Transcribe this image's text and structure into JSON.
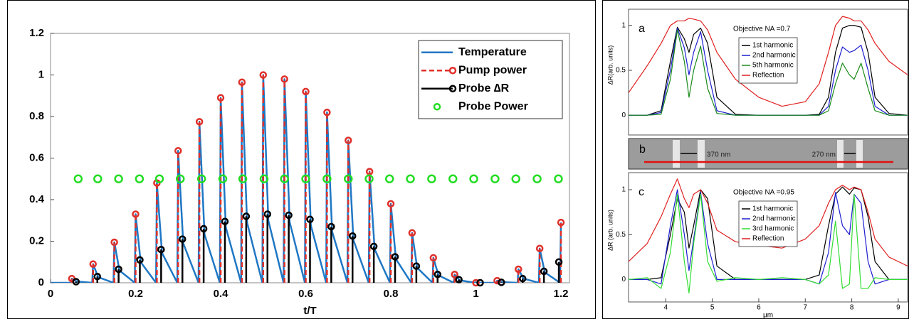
{
  "chart_data": [
    {
      "type": "line",
      "xlabel": "t/T",
      "xlim": [
        0,
        1.22
      ],
      "ylim": [
        0,
        1.2
      ],
      "xticks": [
        0,
        0.2,
        0.4,
        0.6,
        0.8,
        1,
        1.2
      ],
      "yticks": [
        0,
        0.2,
        0.4,
        0.6,
        0.8,
        1,
        1.2
      ],
      "legend": "upper right",
      "series": [
        {
          "name": "Temperature",
          "color": "#1f77c4",
          "style": "line",
          "x": [
            0,
            0.048,
            0.05,
            0.062,
            0.098,
            0.1,
            0.112,
            0.148,
            0.15,
            0.162,
            0.198,
            0.2,
            0.212,
            0.248,
            0.25,
            0.262,
            0.298,
            0.3,
            0.312,
            0.348,
            0.35,
            0.362,
            0.398,
            0.4,
            0.412,
            0.448,
            0.45,
            0.462,
            0.498,
            0.5,
            0.512,
            0.548,
            0.55,
            0.562,
            0.598,
            0.6,
            0.612,
            0.648,
            0.65,
            0.662,
            0.698,
            0.7,
            0.712,
            0.748,
            0.75,
            0.762,
            0.798,
            0.8,
            0.812,
            0.848,
            0.85,
            0.862,
            0.898,
            0.9,
            0.912,
            0.948,
            0.95,
            0.962,
            0.998,
            1.0,
            1.012,
            1.048,
            1.05,
            1.062,
            1.098,
            1.1,
            1.112,
            1.148,
            1.15,
            1.162,
            1.198,
            1.2
          ],
          "values": [
            0,
            0,
            0.02,
            0.006,
            0,
            0.09,
            0.027,
            0,
            0.195,
            0.059,
            0,
            0.33,
            0.099,
            0,
            0.48,
            0.144,
            0,
            0.635,
            0.19,
            0,
            0.775,
            0.233,
            0,
            0.89,
            0.267,
            0,
            0.965,
            0.29,
            0,
            1.0,
            0.3,
            0,
            0.98,
            0.294,
            0,
            0.92,
            0.276,
            0,
            0.82,
            0.246,
            0,
            0.685,
            0.206,
            0,
            0.535,
            0.161,
            0,
            0.38,
            0.114,
            0,
            0.24,
            0.072,
            0,
            0.12,
            0.036,
            0,
            0.04,
            0.012,
            0,
            0,
            0,
            0,
            0.01,
            0.003,
            0,
            0.065,
            0.02,
            0,
            0.165,
            0.05,
            0,
            0.29
          ]
        },
        {
          "name": "Pump power",
          "color": "#e0302a",
          "style": "stem",
          "dashed": true,
          "x": [
            0.05,
            0.1,
            0.15,
            0.2,
            0.25,
            0.3,
            0.35,
            0.4,
            0.45,
            0.5,
            0.55,
            0.6,
            0.65,
            0.7,
            0.75,
            0.8,
            0.85,
            0.9,
            0.95,
            1.0,
            1.05,
            1.1,
            1.15,
            1.2
          ],
          "values": [
            0.02,
            0.09,
            0.195,
            0.33,
            0.48,
            0.635,
            0.775,
            0.89,
            0.965,
            1.0,
            0.98,
            0.92,
            0.82,
            0.685,
            0.535,
            0.38,
            0.24,
            0.12,
            0.04,
            0,
            0.01,
            0.065,
            0.165,
            0.29
          ]
        },
        {
          "name": "Probe ∆R",
          "color": "#000000",
          "style": "stem",
          "dashed": false,
          "x": [
            0.06,
            0.11,
            0.16,
            0.21,
            0.26,
            0.31,
            0.36,
            0.41,
            0.46,
            0.51,
            0.56,
            0.61,
            0.66,
            0.71,
            0.76,
            0.81,
            0.86,
            0.91,
            0.96,
            1.01,
            1.06,
            1.11,
            1.16,
            1.195
          ],
          "values": [
            0.005,
            0.03,
            0.065,
            0.11,
            0.16,
            0.21,
            0.26,
            0.295,
            0.32,
            0.33,
            0.325,
            0.305,
            0.27,
            0.225,
            0.175,
            0.125,
            0.08,
            0.04,
            0.015,
            0,
            0.002,
            0.02,
            0.055,
            0.1
          ]
        },
        {
          "name": "Probe Power",
          "color": "#22dd22",
          "style": "marker",
          "x": [
            0.065,
            0.111,
            0.16,
            0.209,
            0.256,
            0.305,
            0.355,
            0.405,
            0.452,
            0.502,
            0.55,
            0.6,
            0.65,
            0.7,
            0.749,
            0.797,
            0.846,
            0.896,
            0.946,
            0.995,
            1.045,
            1.094,
            1.144,
            1.194
          ],
          "values": [
            0.5,
            0.5,
            0.5,
            0.5,
            0.5,
            0.5,
            0.5,
            0.5,
            0.5,
            0.5,
            0.5,
            0.5,
            0.5,
            0.5,
            0.5,
            0.5,
            0.5,
            0.5,
            0.5,
            0.5,
            0.5,
            0.5,
            0.5,
            0.5
          ]
        }
      ]
    },
    {
      "type": "line",
      "panel_label": "a",
      "annotation": "Objective NA =0.7",
      "ylabel": "ΔR(arb. units)",
      "xlim": [
        3.2,
        9.2
      ],
      "ylim": [
        -0.22,
        1.18
      ],
      "yticks": [
        0,
        0.5,
        1
      ],
      "legend": "upper center",
      "x": [
        3.2,
        3.6,
        3.9,
        4.1,
        4.25,
        4.4,
        4.5,
        4.6,
        4.75,
        4.9,
        5.1,
        5.5,
        6,
        6.5,
        7,
        7.3,
        7.5,
        7.65,
        7.8,
        7.95,
        8.05,
        8.2,
        8.35,
        8.5,
        8.8,
        9.2
      ],
      "series": [
        {
          "name": "1st harmonic",
          "color": "#000000",
          "style": "line",
          "values": [
            0,
            0,
            0.05,
            0.6,
            0.98,
            0.85,
            0.7,
            0.9,
            0.97,
            0.8,
            0.2,
            0.01,
            0,
            0,
            0,
            0.01,
            0.2,
            0.7,
            0.97,
            1.0,
            1.0,
            0.98,
            0.7,
            0.2,
            0.02,
            0
          ]
        },
        {
          "name": "2nd harmonic",
          "color": "#1f1fd0",
          "style": "line",
          "values": [
            0,
            0,
            0.03,
            0.5,
            0.97,
            0.75,
            0.45,
            0.7,
            0.93,
            0.5,
            0.05,
            0,
            0,
            0,
            0,
            0,
            0.1,
            0.5,
            0.76,
            0.7,
            0.72,
            0.78,
            0.5,
            0.1,
            0,
            0
          ]
        },
        {
          "name": "5th harmonic",
          "color": "#1a8a1a",
          "style": "line",
          "values": [
            0,
            0,
            0.01,
            0.4,
            0.95,
            0.6,
            0.2,
            0.5,
            0.77,
            0.3,
            0.02,
            0,
            0,
            0,
            0,
            0,
            0.05,
            0.35,
            0.58,
            0.45,
            0.4,
            0.58,
            0.3,
            0.05,
            0,
            0
          ]
        },
        {
          "name": "Reflection",
          "color": "#e02020",
          "style": "line",
          "values": [
            0.25,
            0.55,
            0.8,
            1.0,
            1.05,
            1.05,
            1.08,
            1.07,
            1.05,
            0.95,
            0.7,
            0.4,
            0.2,
            0.1,
            0.15,
            0.35,
            0.7,
            1.0,
            1.1,
            1.08,
            1.05,
            1.05,
            0.95,
            0.8,
            0.6,
            0.45
          ]
        }
      ]
    },
    {
      "type": "line",
      "panel_label": "c",
      "annotation": "Objective NA =0.95",
      "ylabel": "ΔR (arb. units)",
      "xlabel": "μm",
      "xlim": [
        3.2,
        9.2
      ],
      "ylim": [
        -0.25,
        1.19
      ],
      "xticks": [
        4,
        5,
        6,
        7,
        8,
        9
      ],
      "yticks": [
        0,
        0.5,
        1
      ],
      "legend": "upper center",
      "x": [
        3.2,
        3.6,
        3.9,
        4.1,
        4.25,
        4.4,
        4.5,
        4.6,
        4.75,
        4.9,
        5.1,
        5.5,
        6,
        6.5,
        7,
        7.3,
        7.5,
        7.65,
        7.8,
        7.95,
        8.05,
        8.2,
        8.35,
        8.5,
        8.8,
        9.2
      ],
      "series": [
        {
          "name": "1st harmonic",
          "color": "#000000",
          "style": "line",
          "values": [
            0,
            0,
            0.02,
            0.5,
            0.9,
            0.75,
            0.35,
            0.6,
            1.0,
            0.9,
            0.15,
            0,
            0,
            0,
            0,
            0.05,
            0.6,
            0.95,
            1.03,
            0.95,
            1.02,
            1.0,
            0.7,
            0.2,
            0,
            0
          ]
        },
        {
          "name": "2nd harmonic",
          "color": "#1f1fd0",
          "style": "line",
          "values": [
            0,
            0,
            -0.05,
            0.6,
            1.0,
            0.5,
            0.1,
            0.45,
            0.97,
            0.4,
            0,
            0,
            0,
            0,
            0,
            -0.05,
            0.3,
            0.97,
            0.6,
            0.5,
            0.95,
            0.85,
            0.2,
            -0.05,
            0,
            0
          ]
        },
        {
          "name": "3rd harmonic",
          "color": "#33dd33",
          "style": "line",
          "values": [
            0,
            0.02,
            -0.1,
            0.3,
            0.95,
            0.2,
            -0.15,
            0.4,
            0.95,
            0.2,
            -0.02,
            0.02,
            0,
            0.02,
            0,
            -0.05,
            0.05,
            0.65,
            -0.1,
            -0.05,
            0.95,
            -0.1,
            -0.1,
            0.02,
            0,
            0
          ]
        },
        {
          "name": "Reflection",
          "color": "#e02020",
          "style": "line",
          "values": [
            0.2,
            0.4,
            0.7,
            0.95,
            1.12,
            0.9,
            0.8,
            0.95,
            1.0,
            0.85,
            0.55,
            0.42,
            0.38,
            0.35,
            0.45,
            0.6,
            0.85,
            1.0,
            1.05,
            1.0,
            1.03,
            1.0,
            0.75,
            0.45,
            0.25,
            0.15
          ]
        }
      ]
    }
  ],
  "panel_b": {
    "label": "b",
    "annotations": [
      "370 nm",
      "270 nm"
    ]
  }
}
